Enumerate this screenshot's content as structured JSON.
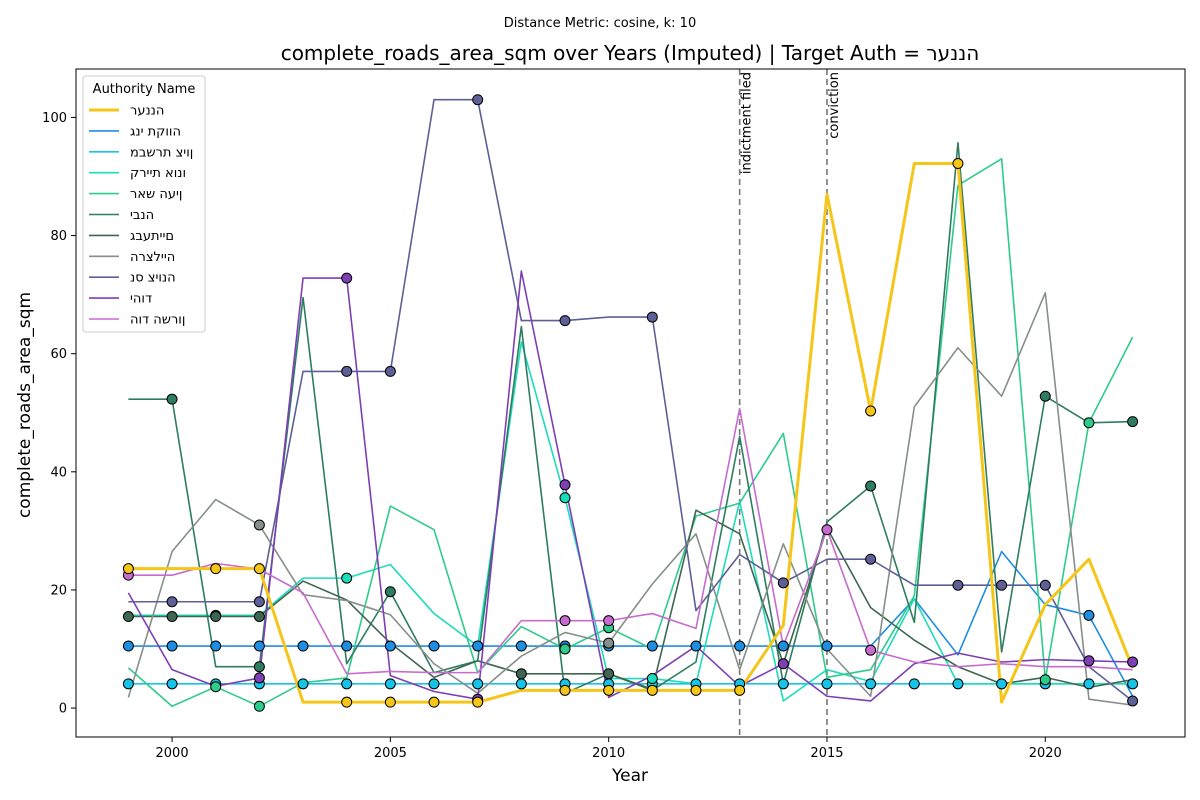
{
  "chart_data": {
    "type": "line",
    "suptitle": "Distance Metric: cosine, k: 10",
    "title": "complete_roads_area_sqm over Years (Imputed) | Target Auth = הננער",
    "xlabel": "Year",
    "ylabel": "complete_roads_area_sqm",
    "xlim": [
      1997.8,
      2023.2
    ],
    "ylim": [
      -4.9,
      108.2
    ],
    "x_ticks": [
      2000,
      2005,
      2010,
      2015,
      2020
    ],
    "y_ticks": [
      0,
      20,
      40,
      60,
      80,
      100
    ],
    "grid": false,
    "legend_title": "Authority Name",
    "legend_position": "upper-left",
    "x": [
      1999,
      2000,
      2001,
      2002,
      2003,
      2004,
      2005,
      2006,
      2007,
      2008,
      2009,
      2010,
      2011,
      2012,
      2013,
      2014,
      2015,
      2016,
      2017,
      2018,
      2019,
      2020,
      2021,
      2022
    ],
    "events": [
      {
        "x": 2013,
        "label": "indictment filed"
      },
      {
        "x": 2015,
        "label": "conviction"
      }
    ],
    "series": [
      {
        "name": "הננער",
        "color": "#f5c518",
        "width": 3,
        "values": [
          23.6,
          23.6,
          23.6,
          23.6,
          1,
          1,
          1,
          1,
          1,
          3,
          3,
          3,
          3,
          3,
          3,
          14,
          87,
          50.3,
          92.2,
          92.2,
          1,
          17.5,
          25.2,
          6.8
        ],
        "markers": [
          1999,
          2001,
          2002,
          2004,
          2005,
          2006,
          2007,
          2009,
          2010,
          2011,
          2012,
          2013,
          2016,
          2018
        ]
      },
      {
        "name": "הווקת ינג",
        "color": "#1f8de0",
        "width": 1.6,
        "values": [
          10.5,
          10.5,
          10.5,
          10.5,
          10.5,
          10.5,
          10.5,
          10.5,
          10.5,
          10.5,
          10.5,
          10.5,
          10.5,
          10.5,
          10.5,
          10.5,
          10.5,
          10.5,
          18.5,
          9,
          26.5,
          17.5,
          15.7,
          2
        ],
        "markers": [
          1999,
          2000,
          2001,
          2002,
          2003,
          2004,
          2005,
          2006,
          2007,
          2008,
          2009,
          2010,
          2011,
          2012,
          2013,
          2014,
          2015,
          2021
        ]
      },
      {
        "name": "ןויצ תרשבמ",
        "color": "#17c4e8",
        "width": 1.6,
        "values": [
          4.1,
          4.1,
          4.1,
          4.1,
          4.1,
          4.1,
          4.1,
          4.1,
          4.1,
          4.1,
          4.1,
          4.1,
          4.1,
          4.1,
          4.1,
          4.1,
          4.1,
          4.1,
          4.1,
          4.1,
          4.1,
          4.1,
          4.1,
          4.1
        ],
        "markers": [
          1999,
          2000,
          2001,
          2002,
          2003,
          2004,
          2005,
          2006,
          2007,
          2008,
          2009,
          2010,
          2011,
          2012,
          2013,
          2014,
          2015,
          2016,
          2017,
          2018,
          2019,
          2020,
          2021,
          2022
        ]
      },
      {
        "name": "ונוא תיירק",
        "color": "#1ddcbc",
        "width": 1.6,
        "values": [
          15.7,
          15.7,
          15.7,
          15.7,
          22,
          22,
          24.3,
          16,
          10.5,
          62,
          35.6,
          5,
          5,
          4.1,
          35,
          1.2,
          6.5,
          4.5,
          18.5,
          4.1,
          4.1,
          4.1,
          4.1,
          4.1
        ],
        "markers": [
          2001,
          2004,
          2009,
          2011
        ]
      },
      {
        "name": "ןיעה שאר",
        "color": "#2ecc8a",
        "width": 1.6,
        "values": [
          6.8,
          0.3,
          3.6,
          0.3,
          4.3,
          5.1,
          34.2,
          30.2,
          6,
          13.8,
          10,
          13.6,
          10,
          32.5,
          34.7,
          46.5,
          5.2,
          6.5,
          19,
          88.5,
          93,
          4.8,
          48.3,
          62.8
        ],
        "markers": [
          2001,
          2002,
          2009,
          2010,
          2020,
          2021
        ]
      },
      {
        "name": "הנבי",
        "color": "#2e7d61",
        "width": 1.6,
        "values": [
          52.3,
          52.3,
          7,
          7,
          69.5,
          7.5,
          19.7,
          6,
          8,
          64.6,
          2.5,
          5.8,
          3,
          7.8,
          46,
          4.1,
          31.5,
          37.6,
          14.5,
          95.7,
          9.5,
          52.8,
          48.3,
          48.5
        ],
        "markers": [
          2000,
          2002,
          2005,
          2016,
          2020,
          2022
        ]
      },
      {
        "name": "םייתעבג",
        "color": "#3f6650",
        "width": 1.6,
        "values": [
          15.5,
          15.5,
          15.5,
          15.5,
          21.5,
          18.3,
          11,
          5.2,
          8,
          5.8,
          5.8,
          5.8,
          3.2,
          33.5,
          29.5,
          7.5,
          30.5,
          17,
          11.5,
          7,
          4.1,
          5.2,
          3.5,
          4.8
        ],
        "markers": [
          1999,
          2000,
          2001,
          2002,
          2008,
          2010
        ]
      },
      {
        "name": "היילצרה",
        "color": "#868f8a",
        "width": 1.6,
        "values": [
          1.8,
          26.5,
          35.3,
          31,
          19.2,
          18.2,
          15.8,
          7.5,
          2.5,
          8.8,
          12.8,
          11,
          21,
          29.5,
          6.5,
          27.8,
          10,
          2,
          51,
          61,
          52.8,
          70.3,
          1.5,
          0.5
        ],
        "markers": [
          2002,
          2010
        ]
      },
      {
        "name": "הנויצ סנ",
        "color": "#5e5f96",
        "width": 1.6,
        "values": [
          18,
          18,
          18,
          18,
          57,
          57,
          57,
          103,
          103,
          65.6,
          65.6,
          66.2,
          66.2,
          16.5,
          26,
          21.2,
          25.2,
          25.2,
          20.8,
          20.8,
          20.8,
          20.8,
          7,
          1.2
        ],
        "markers": [
          2000,
          2002,
          2004,
          2005,
          2007,
          2009,
          2011,
          2014,
          2016,
          2018,
          2019,
          2020,
          2022
        ]
      },
      {
        "name": "דוהי",
        "color": "#7e3fb5",
        "width": 1.6,
        "values": [
          19.5,
          6.5,
          3.7,
          5.1,
          72.8,
          72.8,
          5.5,
          2.8,
          1.5,
          74,
          37.8,
          1.8,
          5.5,
          10.5,
          3.7,
          7.5,
          2,
          1.2,
          7.5,
          9.3,
          7.8,
          8.2,
          8,
          7.8
        ],
        "markers": [
          2002,
          2004,
          2007,
          2009,
          2014,
          2021,
          2022
        ]
      },
      {
        "name": "ןורשה דוה",
        "color": "#c86bcf",
        "width": 1.6,
        "values": [
          22.5,
          22.5,
          24.5,
          23.5,
          19.5,
          5.8,
          6.2,
          6,
          6,
          14.8,
          14.8,
          14.8,
          16,
          13.5,
          50.7,
          10.5,
          30.2,
          9.8,
          7.8,
          7,
          7.5,
          7,
          7,
          6.5
        ],
        "markers": [
          1999,
          2009,
          2010,
          2015,
          2016
        ]
      }
    ]
  }
}
